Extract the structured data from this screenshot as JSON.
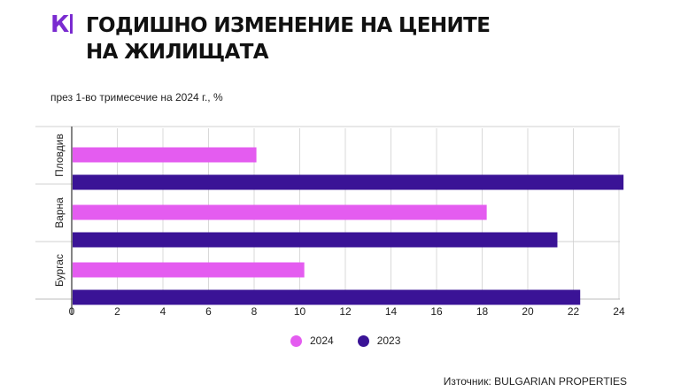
{
  "brand": {
    "logo_text": "К",
    "accent": "#7a2bd0"
  },
  "header": {
    "title_line1": "ГОДИШНО ИЗМЕНЕНИЕ НА ЦЕНИТЕ",
    "title_line2": "НА ЖИЛИЩАТА"
  },
  "chart_data": {
    "type": "bar",
    "orientation": "horizontal",
    "subtitle": "през 1-во тримесечие на 2024 г., %",
    "categories": [
      "Пловдив",
      "Варна",
      "Бургас"
    ],
    "series": [
      {
        "name": "2024",
        "color": "#e45cf0",
        "values": [
          8.1,
          18.2,
          10.2
        ]
      },
      {
        "name": "2023",
        "color": "#3a1396",
        "values": [
          24.2,
          21.3,
          22.3
        ]
      }
    ],
    "xlim": [
      0,
      24
    ],
    "xticks": [
      0,
      2,
      4,
      6,
      8,
      10,
      12,
      14,
      16,
      18,
      20,
      22,
      24
    ],
    "grid": true,
    "legend_position": "bottom-center"
  },
  "legend": [
    {
      "label": "2024",
      "color": "#e45cf0"
    },
    {
      "label": "2023",
      "color": "#3a1396"
    }
  ],
  "source": "Източник: BULGARIAN PROPERTIES"
}
